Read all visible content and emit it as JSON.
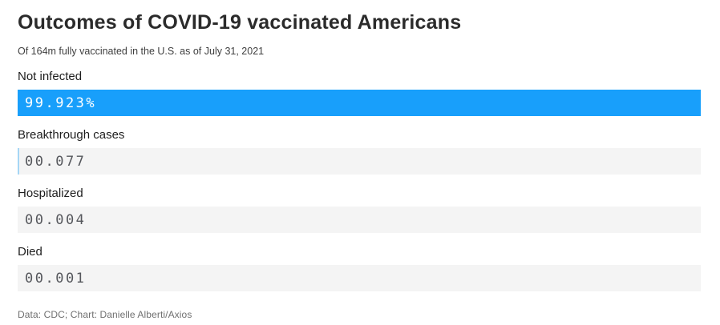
{
  "chart_data": {
    "type": "bar",
    "orientation": "horizontal",
    "title": "Outcomes of COVID-19 vaccinated Americans",
    "subtitle": "Of 164m fully vaccinated in the U.S. as of July 31, 2021",
    "source": "Data: CDC; Chart: Danielle Alberti/Axios",
    "categories": [
      "Not infected",
      "Breakthrough cases",
      "Hospitalized",
      "Died"
    ],
    "values": [
      99.923,
      0.077,
      0.004,
      0.001
    ],
    "value_labels": [
      "99.923%",
      "00.077",
      "00.004",
      "00.001"
    ],
    "xlim": [
      0,
      100
    ],
    "grid": false,
    "legend": false,
    "colors": {
      "bar_fill": "#189ffb",
      "bar_track": "#f4f4f4",
      "tiny_bar_tick": "#a5d6f5",
      "value_text_on_bar": "#ffffff",
      "value_text_on_track": "#55575c",
      "title_text": "#2b2b2b",
      "subtitle_text": "#3f3f3f",
      "source_text": "#707070"
    }
  }
}
